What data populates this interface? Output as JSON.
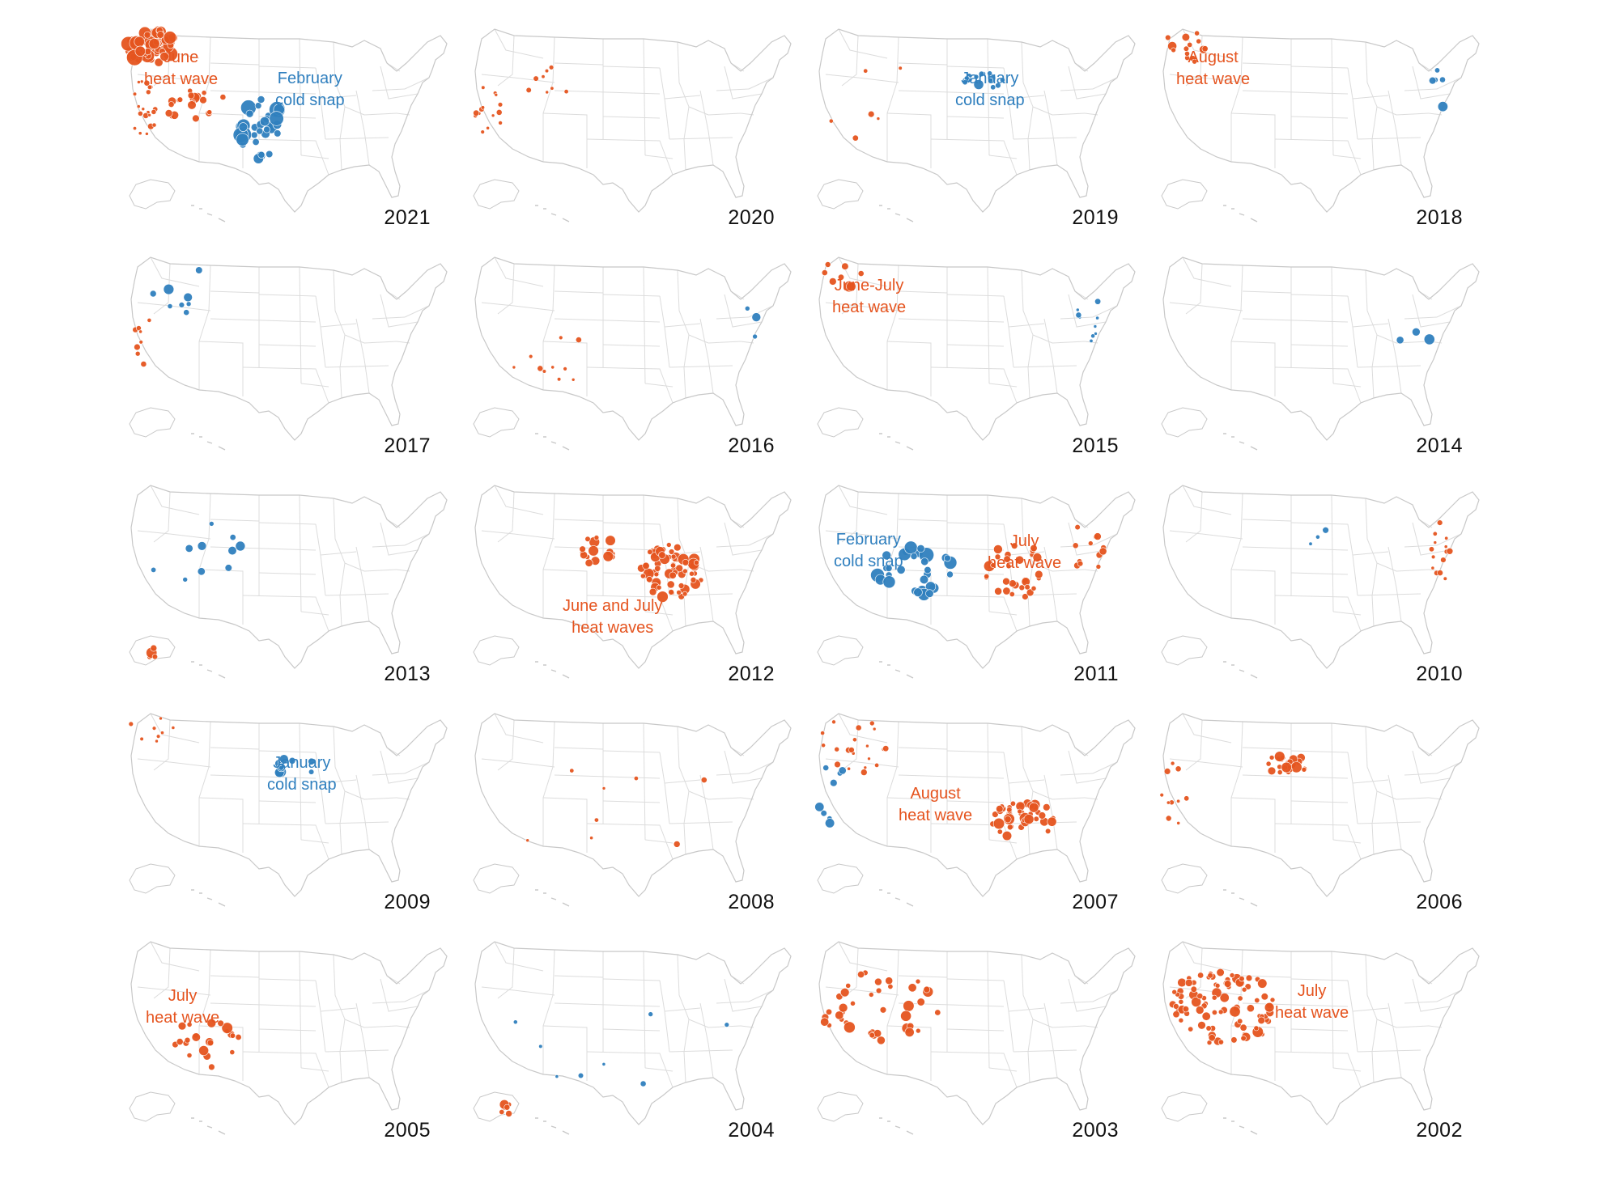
{
  "colors": {
    "heat": "#e5541f",
    "cold": "#2f7fbe",
    "heat_stroke": "#ffffff",
    "map_outline": "#c8c8c8",
    "map_state_lines": "#dcdcdc",
    "year_text": "#111111"
  },
  "chart_data": {
    "type": "map-small-multiples",
    "map_region": "United States (contiguous, with Alaska and Hawaii insets)",
    "encoding": {
      "color": {
        "heat": "#e5541f",
        "cold": "#2f7fbe"
      },
      "size": "relative magnitude (circle area)"
    },
    "panels": [
      {
        "year": "2021",
        "annotations": [
          {
            "type": "heat",
            "lines": [
              "June",
              "heat wave"
            ],
            "anchor": "northwest"
          },
          {
            "type": "cold",
            "lines": [
              "February",
              "cold snap"
            ],
            "anchor": "central plains"
          }
        ],
        "clusters": [
          {
            "type": "heat",
            "region": "pacific-northwest",
            "count": 60,
            "size": "large"
          },
          {
            "type": "heat",
            "region": "california",
            "count": 20,
            "size": "small"
          },
          {
            "type": "heat",
            "region": "nevada-utah",
            "count": 20,
            "size": "medium"
          },
          {
            "type": "cold",
            "region": "texas-oklahoma-kansas",
            "count": 35,
            "size": "large"
          }
        ]
      },
      {
        "year": "2020",
        "annotations": [],
        "clusters": [
          {
            "type": "heat",
            "region": "california",
            "count": 14,
            "size": "small"
          },
          {
            "type": "heat",
            "region": "colorado-utah",
            "count": 8,
            "size": "small"
          }
        ]
      },
      {
        "year": "2019",
        "annotations": [
          {
            "type": "cold",
            "lines": [
              "January",
              "cold snap"
            ],
            "anchor": "upper midwest"
          }
        ],
        "clusters": [
          {
            "type": "cold",
            "region": "upper-midwest",
            "count": 16,
            "size": "medium"
          },
          {
            "type": "heat",
            "region": "scattered-west",
            "count": 6,
            "size": "small"
          }
        ]
      },
      {
        "year": "2018",
        "annotations": [
          {
            "type": "heat",
            "lines": [
              "August",
              "heat wave"
            ],
            "anchor": "northwest"
          }
        ],
        "clusters": [
          {
            "type": "heat",
            "region": "pacific-northwest",
            "count": 14,
            "size": "medium"
          },
          {
            "type": "cold",
            "region": "northeast",
            "count": 5,
            "size": "medium"
          }
        ]
      },
      {
        "year": "2017",
        "annotations": [],
        "clusters": [
          {
            "type": "cold",
            "region": "northwest",
            "count": 8,
            "size": "medium"
          },
          {
            "type": "heat",
            "region": "california",
            "count": 8,
            "size": "small"
          }
        ]
      },
      {
        "year": "2016",
        "annotations": [],
        "clusters": [
          {
            "type": "heat",
            "region": "southwest",
            "count": 10,
            "size": "small"
          },
          {
            "type": "cold",
            "region": "northeast",
            "count": 3,
            "size": "medium"
          }
        ]
      },
      {
        "year": "2015",
        "annotations": [
          {
            "type": "heat",
            "lines": [
              "June-July",
              "heat wave"
            ],
            "anchor": "northwest"
          }
        ],
        "clusters": [
          {
            "type": "heat",
            "region": "pacific-northwest",
            "count": 8,
            "size": "medium"
          },
          {
            "type": "cold",
            "region": "northeast",
            "count": 9,
            "size": "small"
          }
        ]
      },
      {
        "year": "2014",
        "annotations": [],
        "clusters": [
          {
            "type": "cold",
            "region": "east",
            "count": 3,
            "size": "medium"
          }
        ]
      },
      {
        "year": "2013",
        "annotations": [],
        "clusters": [
          {
            "type": "cold",
            "region": "west",
            "count": 10,
            "size": "medium"
          },
          {
            "type": "heat",
            "region": "alaska",
            "count": 4,
            "size": "medium"
          }
        ]
      },
      {
        "year": "2012",
        "annotations": [
          {
            "type": "heat",
            "lines": [
              "June and July",
              "heat waves"
            ],
            "anchor": "central"
          }
        ],
        "clusters": [
          {
            "type": "heat",
            "region": "midwest",
            "count": 70,
            "size": "medium"
          },
          {
            "type": "heat",
            "region": "plains",
            "count": 15,
            "size": "medium"
          }
        ]
      },
      {
        "year": "2011",
        "annotations": [
          {
            "type": "cold",
            "lines": [
              "February",
              "cold snap"
            ],
            "anchor": "southwest"
          },
          {
            "type": "heat",
            "lines": [
              "July",
              "heat wave"
            ],
            "anchor": "northeast"
          }
        ],
        "clusters": [
          {
            "type": "cold",
            "region": "southern-plains",
            "count": 30,
            "size": "large"
          },
          {
            "type": "heat",
            "region": "midwest",
            "count": 30,
            "size": "medium"
          },
          {
            "type": "heat",
            "region": "northeast",
            "count": 12,
            "size": "medium"
          }
        ]
      },
      {
        "year": "2010",
        "annotations": [],
        "clusters": [
          {
            "type": "heat",
            "region": "east-coast",
            "count": 14,
            "size": "small"
          },
          {
            "type": "cold",
            "region": "upper-midwest",
            "count": 3,
            "size": "small"
          }
        ]
      },
      {
        "year": "2009",
        "annotations": [
          {
            "type": "cold",
            "lines": [
              "January",
              "cold snap"
            ],
            "anchor": "upper midwest"
          }
        ],
        "clusters": [
          {
            "type": "cold",
            "region": "upper-midwest",
            "count": 12,
            "size": "medium"
          },
          {
            "type": "heat",
            "region": "pacific-northwest",
            "count": 8,
            "size": "small"
          }
        ]
      },
      {
        "year": "2008",
        "annotations": [],
        "clusters": [
          {
            "type": "heat",
            "region": "scattered",
            "count": 8,
            "size": "small"
          }
        ]
      },
      {
        "year": "2007",
        "annotations": [
          {
            "type": "heat",
            "lines": [
              "August",
              "heat wave"
            ],
            "anchor": "southeast"
          }
        ],
        "clusters": [
          {
            "type": "heat",
            "region": "southeast",
            "count": 40,
            "size": "medium"
          },
          {
            "type": "heat",
            "region": "northwest",
            "count": 20,
            "size": "small"
          },
          {
            "type": "cold",
            "region": "california",
            "count": 8,
            "size": "medium"
          }
        ]
      },
      {
        "year": "2006",
        "annotations": [],
        "clusters": [
          {
            "type": "heat",
            "region": "northern-plains",
            "count": 25,
            "size": "medium"
          },
          {
            "type": "heat",
            "region": "california",
            "count": 10,
            "size": "small"
          }
        ]
      },
      {
        "year": "2005",
        "annotations": [
          {
            "type": "heat",
            "lines": [
              "July",
              "heat wave"
            ],
            "anchor": "southwest"
          }
        ],
        "clusters": [
          {
            "type": "heat",
            "region": "southwest",
            "count": 22,
            "size": "medium"
          }
        ]
      },
      {
        "year": "2004",
        "annotations": [],
        "clusters": [
          {
            "type": "cold",
            "region": "scattered",
            "count": 8,
            "size": "small"
          },
          {
            "type": "heat",
            "region": "alaska",
            "count": 6,
            "size": "medium"
          }
        ]
      },
      {
        "year": "2003",
        "annotations": [],
        "clusters": [
          {
            "type": "heat",
            "region": "west",
            "count": 40,
            "size": "medium"
          }
        ]
      },
      {
        "year": "2002",
        "annotations": [
          {
            "type": "heat",
            "lines": [
              "July",
              "heat wave"
            ],
            "anchor": "west"
          }
        ],
        "clusters": [
          {
            "type": "heat",
            "region": "west",
            "count": 90,
            "size": "medium"
          }
        ]
      }
    ]
  }
}
